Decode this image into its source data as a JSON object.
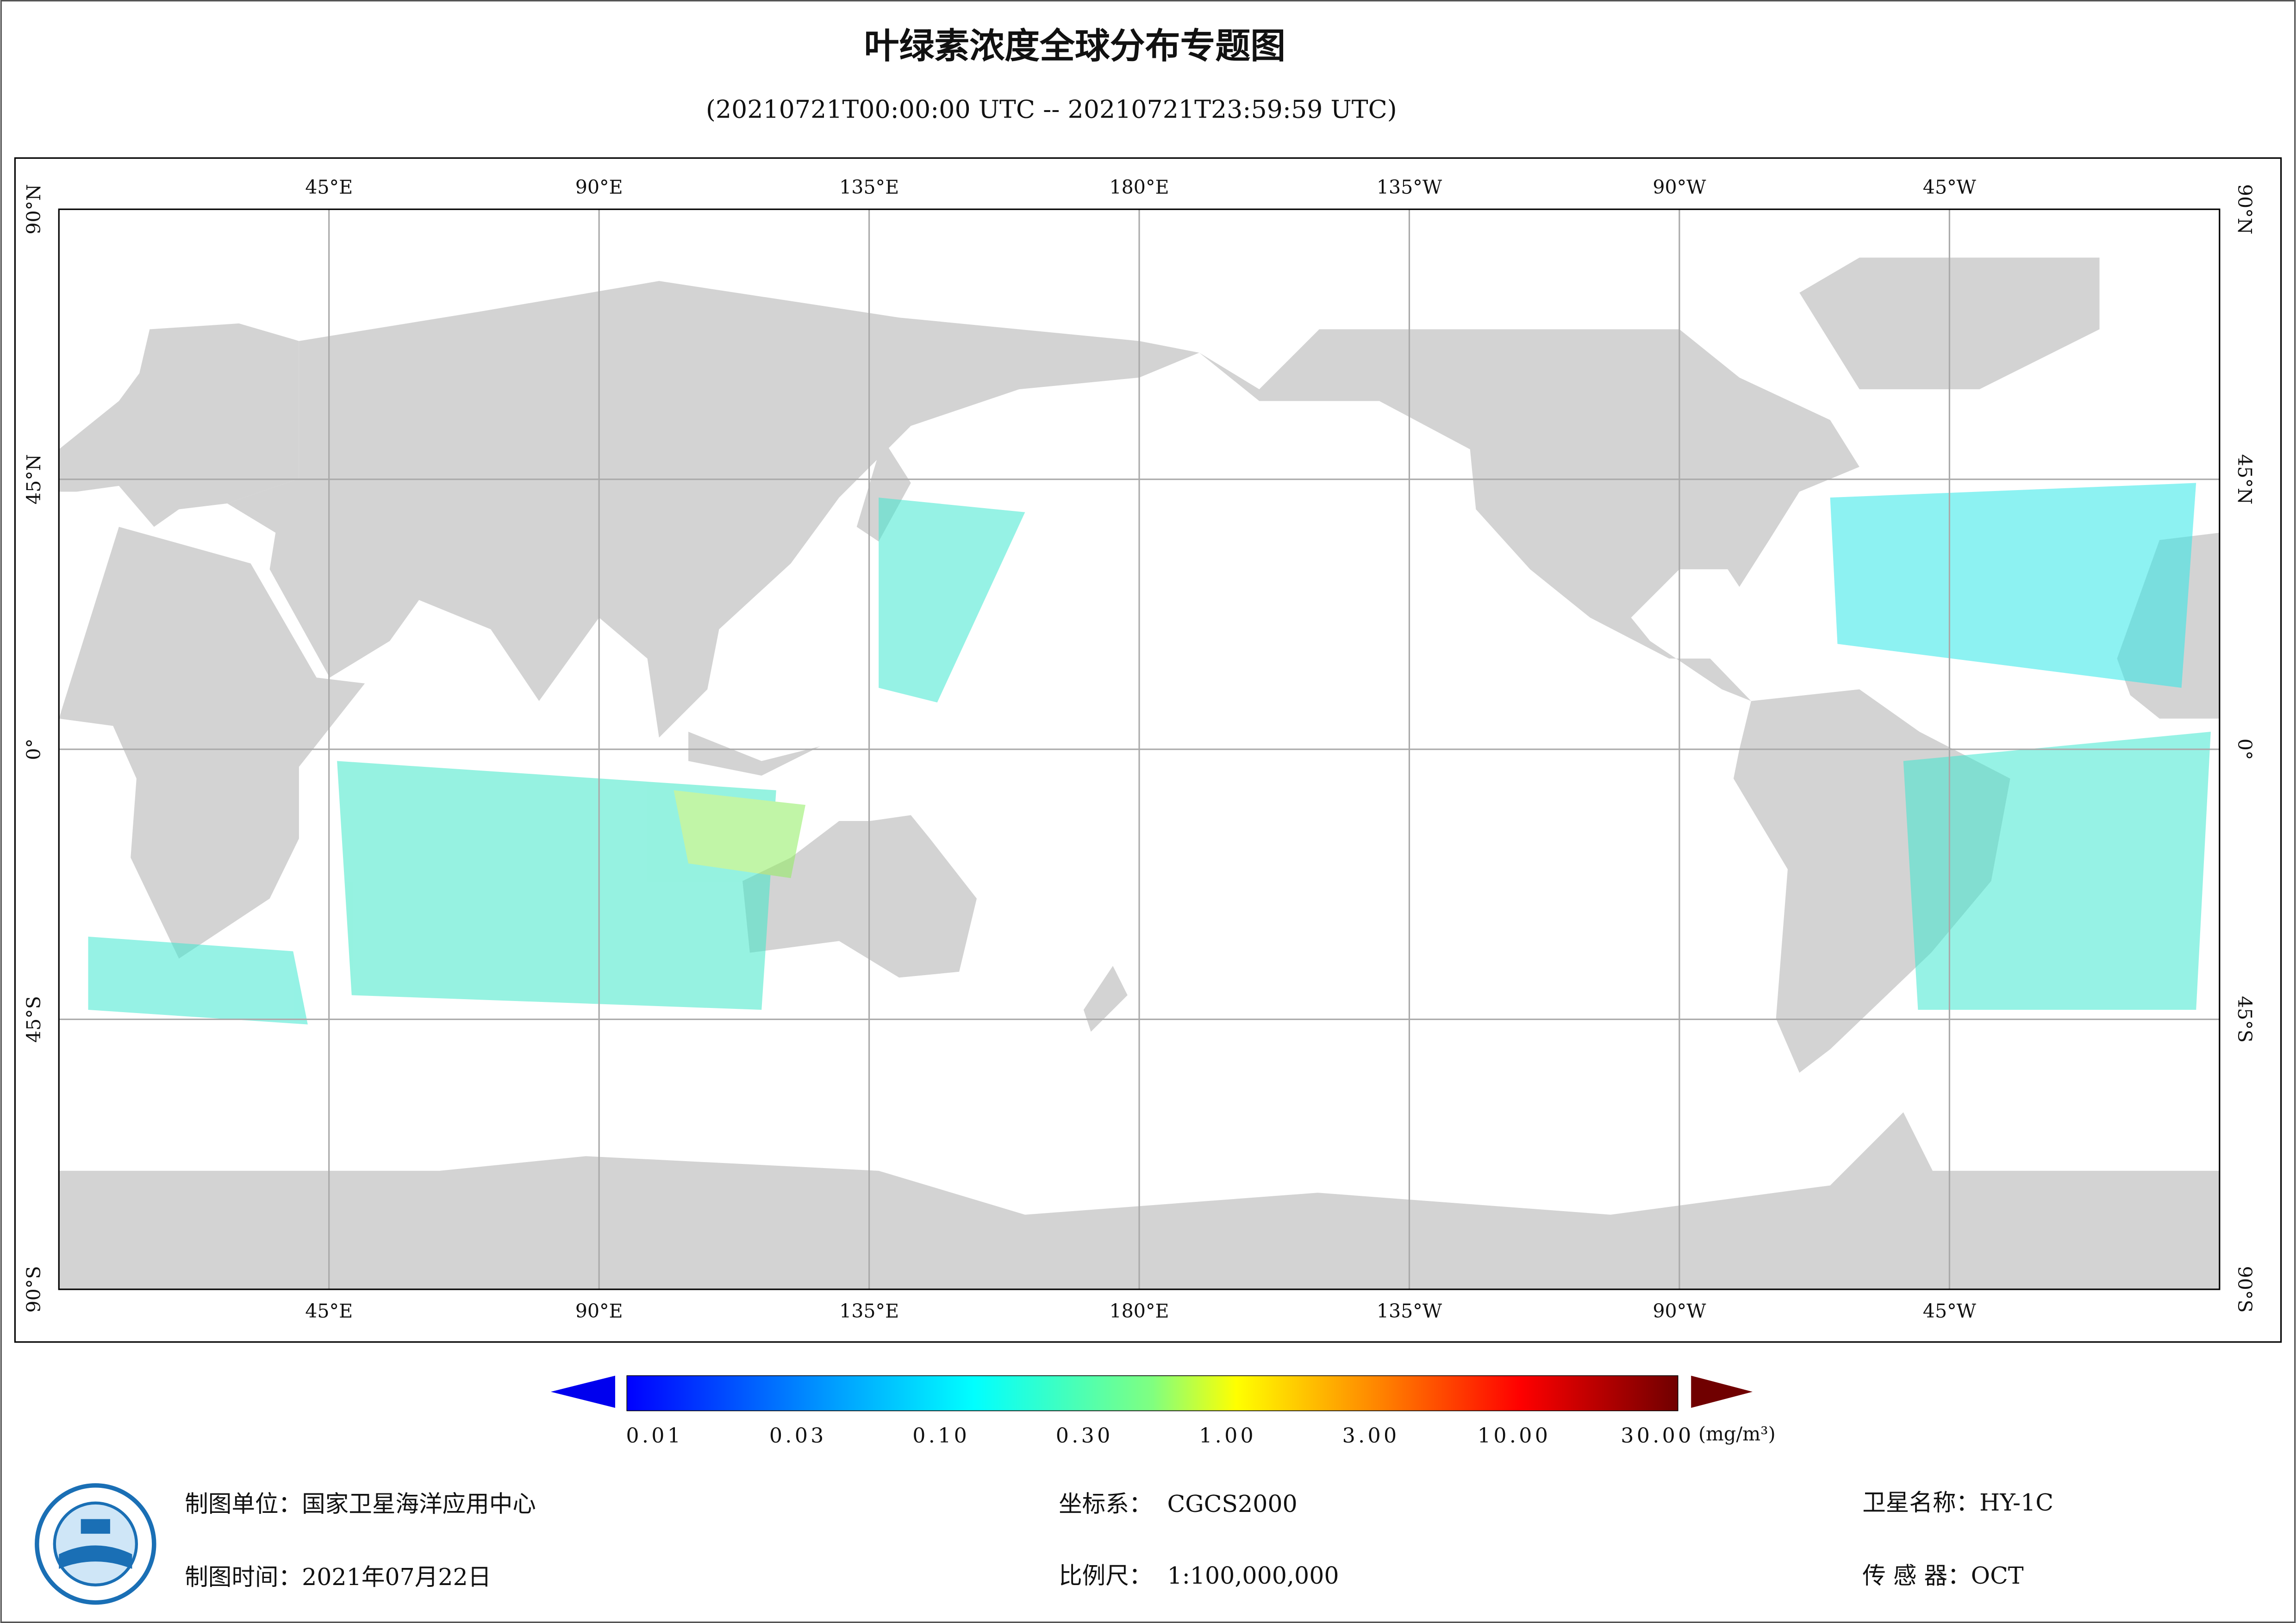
{
  "title": "叶绿素浓度全球分布专题图",
  "subtitle": "(20210721T00:00:00 UTC -- 20210721T23:59:59 UTC)",
  "map": {
    "longitude_labels": [
      "45°E",
      "90°E",
      "135°E",
      "180°E",
      "135°W",
      "90°W",
      "45°W"
    ],
    "latitude_labels": [
      "90°N",
      "45°N",
      "0°",
      "45°S",
      "90°S"
    ]
  },
  "colorbar": {
    "labels": [
      "0.01",
      "0.03",
      "0.10",
      "0.30",
      "1.00",
      "3.00",
      "10.00",
      "30.00"
    ],
    "unit": "(mg/m³)"
  },
  "footer": {
    "producer": "制图单位：国家卫星海洋应用中心",
    "date": "制图时间：2021年07月22日",
    "crs": "坐标系：  CGCS2000",
    "scale": "比例尺：  1:100,000,000",
    "satellite": "卫星名称：HY-1C",
    "sensor": "传 感 器：OCT"
  }
}
